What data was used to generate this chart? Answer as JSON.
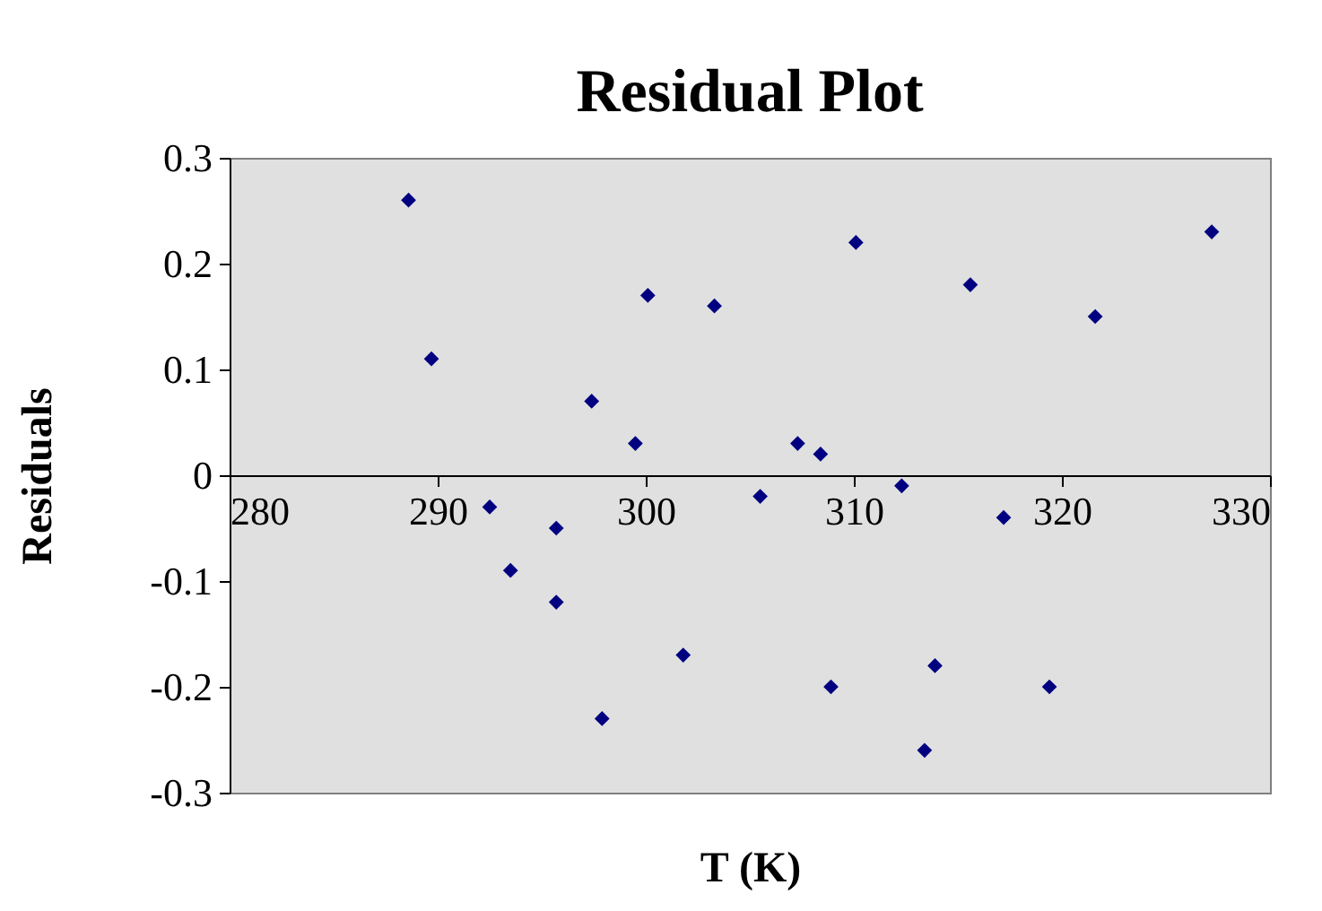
{
  "chart_data": {
    "type": "scatter",
    "title": "Residual Plot",
    "xlabel": "T (K)",
    "ylabel": "Residuals",
    "x": [
      288.6,
      289.7,
      292.5,
      293.5,
      295.7,
      295.7,
      297.4,
      297.9,
      299.5,
      300.1,
      301.8,
      303.3,
      305.5,
      307.3,
      308.4,
      308.9,
      310.1,
      312.3,
      313.4,
      313.9,
      315.6,
      317.2,
      319.4,
      321.6,
      327.2
    ],
    "series": [
      {
        "color": "#000080",
        "values": [
          0.26,
          0.11,
          -0.03,
          -0.09,
          -0.05,
          -0.12,
          0.07,
          -0.23,
          0.03,
          0.17,
          -0.17,
          0.16,
          -0.02,
          0.03,
          0.02,
          -0.2,
          0.22,
          -0.01,
          -0.26,
          -0.18,
          0.18,
          -0.04,
          -0.2,
          0.15,
          0.23
        ]
      }
    ],
    "xlim": [
      280,
      330
    ],
    "xticks": [
      280,
      290,
      300,
      310,
      320,
      330
    ],
    "ylim": [
      -0.3,
      0.3
    ],
    "yticks": [
      -0.3,
      -0.2,
      -0.1,
      0,
      0.1,
      0.2,
      0.3
    ],
    "grid": false,
    "marker": "diamond"
  }
}
